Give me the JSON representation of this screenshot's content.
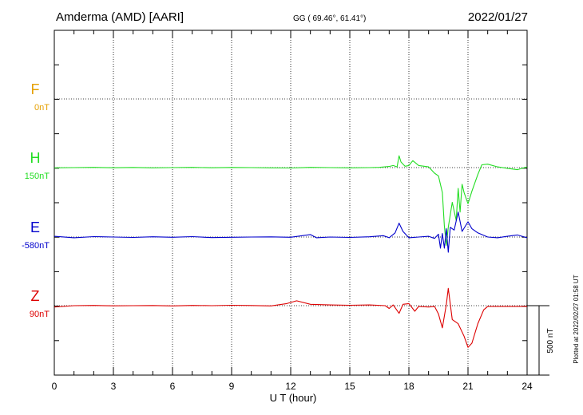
{
  "header": {
    "station": "Amderma (AMD)  [AARI]",
    "coords": "GG ( 69.46°,  61.41°)",
    "date": "2022/01/27"
  },
  "footer": {
    "plotted": "Plotted at 2022/02/27 01:58 UT"
  },
  "colors": {
    "F": "#e6a000",
    "H": "#22dd22",
    "E": "#0000cc",
    "Z": "#dd0000"
  },
  "chart_data": {
    "type": "line",
    "xlabel": "U T (hour)",
    "xlim": [
      0,
      24
    ],
    "xticks": [
      "0",
      "3",
      "6",
      "9",
      "12",
      "15",
      "18",
      "21",
      "24"
    ],
    "scale_label": "500 nT",
    "scale_nT": 500,
    "components": [
      {
        "name": "F",
        "baseline_label": "0nT",
        "points": []
      },
      {
        "name": "H",
        "baseline_label": "150nT",
        "points": [
          [
            0,
            -2
          ],
          [
            1,
            0
          ],
          [
            2,
            2
          ],
          [
            3,
            -1
          ],
          [
            4,
            1
          ],
          [
            5,
            -2
          ],
          [
            6,
            0
          ],
          [
            7,
            2
          ],
          [
            8,
            -1
          ],
          [
            9,
            1
          ],
          [
            10,
            0
          ],
          [
            11,
            -2
          ],
          [
            12,
            -3
          ],
          [
            13,
            2
          ],
          [
            14,
            0
          ],
          [
            15,
            -2
          ],
          [
            16,
            0
          ],
          [
            16.5,
            2
          ],
          [
            17,
            8
          ],
          [
            17.2,
            15
          ],
          [
            17.4,
            5
          ],
          [
            17.5,
            85
          ],
          [
            17.6,
            40
          ],
          [
            17.8,
            10
          ],
          [
            18,
            15
          ],
          [
            18.2,
            50
          ],
          [
            18.5,
            15
          ],
          [
            19,
            5
          ],
          [
            19.3,
            -40
          ],
          [
            19.5,
            -60
          ],
          [
            19.7,
            -180
          ],
          [
            19.8,
            -420
          ],
          [
            19.9,
            -560
          ],
          [
            20,
            -430
          ],
          [
            20.2,
            -250
          ],
          [
            20.4,
            -380
          ],
          [
            20.5,
            -150
          ],
          [
            20.6,
            -320
          ],
          [
            20.7,
            -120
          ],
          [
            20.8,
            -180
          ],
          [
            21,
            -260
          ],
          [
            21.2,
            -170
          ],
          [
            21.5,
            -50
          ],
          [
            21.7,
            20
          ],
          [
            22,
            25
          ],
          [
            22.5,
            5
          ],
          [
            23,
            -5
          ],
          [
            23.5,
            -15
          ],
          [
            24,
            5
          ]
        ]
      },
      {
        "name": "E",
        "baseline_label": "-580nT",
        "points": [
          [
            0,
            5
          ],
          [
            1,
            -5
          ],
          [
            2,
            3
          ],
          [
            3,
            0
          ],
          [
            4,
            -3
          ],
          [
            5,
            2
          ],
          [
            6,
            -2
          ],
          [
            7,
            3
          ],
          [
            8,
            -4
          ],
          [
            9,
            -2
          ],
          [
            10,
            0
          ],
          [
            11,
            1
          ],
          [
            12,
            -2
          ],
          [
            13,
            18
          ],
          [
            13.3,
            -5
          ],
          [
            14,
            0
          ],
          [
            15,
            -3
          ],
          [
            16,
            2
          ],
          [
            16.7,
            10
          ],
          [
            17,
            -5
          ],
          [
            17.3,
            30
          ],
          [
            17.5,
            100
          ],
          [
            17.7,
            40
          ],
          [
            18,
            -5
          ],
          [
            18.5,
            0
          ],
          [
            19,
            5
          ],
          [
            19.3,
            -10
          ],
          [
            19.5,
            20
          ],
          [
            19.6,
            -80
          ],
          [
            19.7,
            25
          ],
          [
            19.8,
            -80
          ],
          [
            19.9,
            60
          ],
          [
            20,
            -110
          ],
          [
            20.1,
            70
          ],
          [
            20.3,
            50
          ],
          [
            20.5,
            180
          ],
          [
            20.7,
            40
          ],
          [
            21,
            110
          ],
          [
            21.2,
            60
          ],
          [
            21.5,
            30
          ],
          [
            22,
            0
          ],
          [
            22.5,
            -5
          ],
          [
            23,
            5
          ],
          [
            23.5,
            15
          ],
          [
            24,
            -5
          ]
        ]
      },
      {
        "name": "Z",
        "baseline_label": "90nT",
        "points": [
          [
            0,
            -10
          ],
          [
            1,
            0
          ],
          [
            2,
            2
          ],
          [
            3,
            -1
          ],
          [
            4,
            0
          ],
          [
            5,
            1
          ],
          [
            6,
            -2
          ],
          [
            7,
            2
          ],
          [
            8,
            0
          ],
          [
            9,
            3
          ],
          [
            10,
            1
          ],
          [
            11,
            -2
          ],
          [
            11.8,
            15
          ],
          [
            12.3,
            35
          ],
          [
            13,
            10
          ],
          [
            14,
            5
          ],
          [
            15,
            3
          ],
          [
            16,
            5
          ],
          [
            16.8,
            0
          ],
          [
            17,
            -20
          ],
          [
            17.2,
            5
          ],
          [
            17.5,
            -55
          ],
          [
            17.7,
            10
          ],
          [
            18,
            15
          ],
          [
            18.3,
            -40
          ],
          [
            18.5,
            -5
          ],
          [
            19,
            -10
          ],
          [
            19.3,
            -5
          ],
          [
            19.5,
            -60
          ],
          [
            19.7,
            -160
          ],
          [
            19.9,
            10
          ],
          [
            20,
            125
          ],
          [
            20.2,
            -100
          ],
          [
            20.5,
            -130
          ],
          [
            20.8,
            -220
          ],
          [
            21,
            -300
          ],
          [
            21.2,
            -270
          ],
          [
            21.5,
            -130
          ],
          [
            21.8,
            -30
          ],
          [
            22,
            -5
          ],
          [
            22.5,
            -5
          ],
          [
            23,
            -5
          ],
          [
            24,
            -5
          ]
        ]
      }
    ]
  }
}
